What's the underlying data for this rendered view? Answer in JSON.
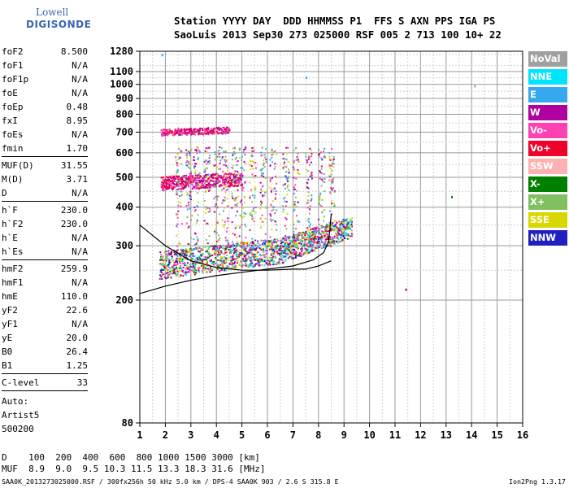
{
  "logo": {
    "line1": "Lowell",
    "line2": "DIGISONDE"
  },
  "header": {
    "line1": "Station YYYY DAY  DDD HHMMSS P1  FFS S AXN PPS IGA PS",
    "line2": "SaoLuis 2013 Sep30 273 025000 RSF 005 2 713 100 10+ 22"
  },
  "params_group1": [
    {
      "name": "foF2",
      "value": "8.500"
    },
    {
      "name": "foF1",
      "value": "N/A"
    },
    {
      "name": "foF1p",
      "value": "N/A"
    },
    {
      "name": "foE",
      "value": "N/A"
    },
    {
      "name": "foEp",
      "value": "0.48"
    },
    {
      "name": "fxI",
      "value": "8.95"
    },
    {
      "name": "foEs",
      "value": "N/A"
    },
    {
      "name": "fmin",
      "value": "1.70"
    }
  ],
  "params_group2": [
    {
      "name": "MUF(D)",
      "value": "31.55"
    },
    {
      "name": "M(D)",
      "value": "3.71"
    },
    {
      "name": "D",
      "value": "N/A"
    }
  ],
  "params_group3": [
    {
      "name": "h`F",
      "value": "230.0"
    },
    {
      "name": "h`F2",
      "value": "230.0"
    },
    {
      "name": "h`E",
      "value": "N/A"
    },
    {
      "name": "h`Es",
      "value": "N/A"
    }
  ],
  "params_group4": [
    {
      "name": "hmF2",
      "value": "259.9"
    },
    {
      "name": "hmF1",
      "value": "N/A"
    },
    {
      "name": "hmE",
      "value": "110.0"
    },
    {
      "name": "yF2",
      "value": "22.6"
    },
    {
      "name": "yF1",
      "value": "N/A"
    },
    {
      "name": "yE",
      "value": "20.0"
    },
    {
      "name": "B0",
      "value": "26.4"
    },
    {
      "name": "B1",
      "value": "1.25"
    }
  ],
  "params_group5": [
    {
      "name": "C-level",
      "value": "33"
    }
  ],
  "auto": {
    "line1": "Auto:",
    "line2": "Artist5",
    "line3": "500200"
  },
  "footer": {
    "d_row": "D    100  200  400  600  800 1000 1500 3000 [km]",
    "muf_row": "MUF  8.9  9.0  9.5 10.3 11.5 13.3 18.3 31.6 [MHz]",
    "file_info": "SAA0K_2013273025000.RSF / 300fx256h 50 kHz 5.0 km / DPS-4 SAA0K 903 / 2.6 S 315.8 E",
    "version": "Ion2Png 1.3.17"
  },
  "legend": [
    {
      "label": "NoVal",
      "color": "#a0a0a0"
    },
    {
      "label": "NNE",
      "color": "#00e5ff"
    },
    {
      "label": "E",
      "color": "#35a8f0"
    },
    {
      "label": "W",
      "color": "#b000a0"
    },
    {
      "label": "Vo-",
      "color": "#ff40b0"
    },
    {
      "label": "Vo+",
      "color": "#f0002a"
    },
    {
      "label": "SSW",
      "color": "#ffb0b0"
    },
    {
      "label": "X-",
      "color": "#008000"
    },
    {
      "label": "X+",
      "color": "#80c060"
    },
    {
      "label": "SSE",
      "color": "#d8d800"
    },
    {
      "label": "NNW",
      "color": "#2020c0"
    }
  ],
  "chart_data": {
    "type": "scatter",
    "title": "",
    "xlabel": "",
    "ylabel": "",
    "x_range": [
      1,
      16
    ],
    "y_range": [
      80,
      1280
    ],
    "y_scale": "log",
    "x_ticks": [
      1,
      2,
      3,
      4,
      5,
      6,
      7,
      8,
      9,
      10,
      11,
      12,
      13,
      14,
      15,
      16
    ],
    "y_ticks": [
      80,
      200,
      300,
      400,
      500,
      600,
      700,
      800,
      900,
      1000,
      1100,
      1280
    ],
    "grid": true,
    "legend_position": "right",
    "clusters": [
      {
        "name": "F2 trace",
        "x": [
          1.75,
          9.3
        ],
        "y": [
          230,
          340
        ],
        "colors": [
          "#f0002a",
          "#ff40b0",
          "#b000a0",
          "#008000",
          "#2020c0",
          "#35a8f0",
          "#00e5ff",
          "#d8d800",
          "#80c060"
        ]
      },
      {
        "name": "2F band",
        "x": [
          1.8,
          5.0
        ],
        "y": [
          450,
          520
        ],
        "colors": [
          "#f0002a",
          "#ff40b0",
          "#b000a0"
        ]
      },
      {
        "name": "3F band",
        "x": [
          1.8,
          4.5
        ],
        "y": [
          680,
          730
        ],
        "colors": [
          "#f0002a",
          "#ff40b0",
          "#b000a0"
        ]
      },
      {
        "name": "oblique echoes",
        "x": [
          2.5,
          8.5
        ],
        "y": [
          350,
          650
        ],
        "colors": [
          "#d8d800",
          "#80c060",
          "#ff40b0",
          "#b000a0",
          "#35a8f0"
        ]
      }
    ],
    "isolated_points": [
      {
        "x": 1.85,
        "y": 1255,
        "color": "#35a8f0"
      },
      {
        "x": 7.5,
        "y": 1060,
        "color": "#35a8f0"
      },
      {
        "x": 11.4,
        "y": 218,
        "color": "#b000a0"
      },
      {
        "x": 13.2,
        "y": 435,
        "color": "#008000"
      },
      {
        "x": 14.1,
        "y": 995,
        "color": "#a0a0a0"
      }
    ],
    "profile_curve": [
      [
        1,
        210
      ],
      [
        2,
        222
      ],
      [
        3,
        232
      ],
      [
        4,
        240
      ],
      [
        5,
        246
      ],
      [
        6,
        252
      ],
      [
        7,
        258
      ],
      [
        7.8,
        270
      ],
      [
        8.2,
        285
      ],
      [
        8.4,
        310
      ],
      [
        8.5,
        380
      ]
    ],
    "profile_curve2": [
      [
        1,
        350
      ],
      [
        2,
        300
      ],
      [
        3,
        268
      ],
      [
        4,
        255
      ],
      [
        5,
        250
      ],
      [
        6,
        250
      ],
      [
        7,
        252
      ],
      [
        7.5,
        252
      ],
      [
        8,
        258
      ],
      [
        8.5,
        268
      ]
    ]
  }
}
